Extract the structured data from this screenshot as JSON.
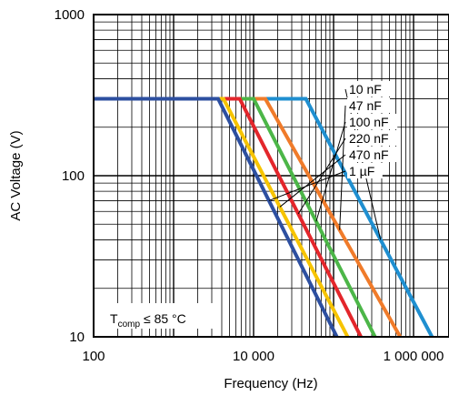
{
  "chart_data": {
    "type": "line",
    "x_scale": "log",
    "y_scale": "log",
    "xlim": [
      100,
      10000000
    ],
    "ylim": [
      10,
      1000
    ],
    "x_ticks": [
      {
        "value": 100,
        "label": "100"
      },
      {
        "value": 10000,
        "label": "10 000"
      },
      {
        "value": 1000000,
        "label": "1 000 000"
      }
    ],
    "y_ticks": [
      {
        "value": 1000,
        "label": "1000"
      },
      {
        "value": 100,
        "label": "100"
      },
      {
        "value": 10,
        "label": "10"
      }
    ],
    "xlabel": "Frequency (Hz)",
    "ylabel": "AC Voltage (V)",
    "grid": true,
    "legend_placement": "right, leader lines",
    "annotation": {
      "main": "T",
      "sub": "comp",
      "rest": "≤ 85 °C"
    },
    "series": [
      {
        "name": "10 nF",
        "color": "#1f8fd0",
        "x": [
          100,
          45000,
          1700000
        ],
        "y": [
          300,
          300,
          10
        ]
      },
      {
        "name": "47 nF",
        "color": "#f07b2a",
        "x": [
          100,
          14000,
          680000
        ],
        "y": [
          300,
          300,
          10
        ]
      },
      {
        "name": "100 nF",
        "color": "#4cb648",
        "x": [
          100,
          10000,
          330000
        ],
        "y": [
          300,
          300,
          10
        ]
      },
      {
        "name": "220 nF",
        "color": "#e3262b",
        "x": [
          100,
          6700,
          220000
        ],
        "y": [
          300,
          300,
          10
        ]
      },
      {
        "name": "470 nF",
        "color": "#f7c400",
        "x": [
          100,
          4200,
          150000
        ],
        "y": [
          300,
          300,
          10
        ]
      },
      {
        "name": "1 µF",
        "color": "#2d4fa0",
        "x": [
          100,
          3600,
          110000
        ],
        "y": [
          300,
          300,
          10
        ]
      }
    ]
  }
}
